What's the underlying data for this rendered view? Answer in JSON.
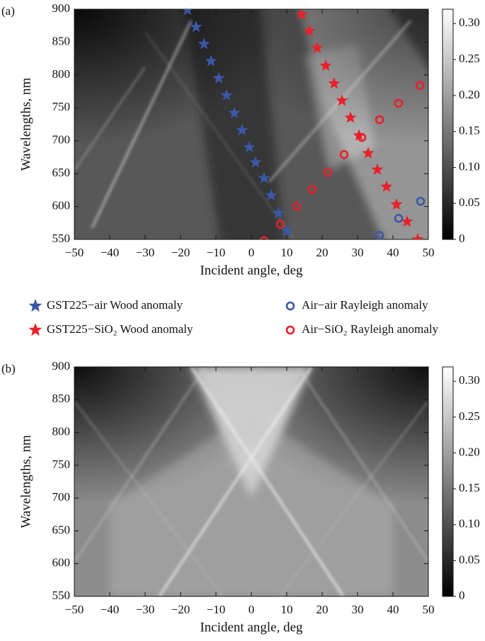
{
  "chart_data": [
    {
      "type": "scatter",
      "panel_label": "(a)",
      "xlabel": "Incident angle, deg",
      "ylabel": "Wavelengths, nm",
      "xlim": [
        -50,
        50
      ],
      "ylim": [
        550,
        900
      ],
      "xticks": [
        {
          "value": -50,
          "label": "−50"
        },
        {
          "value": -40,
          "label": "−40"
        },
        {
          "value": -30,
          "label": "−30"
        },
        {
          "value": -20,
          "label": "−20"
        },
        {
          "value": -10,
          "label": "−10"
        },
        0,
        10,
        20,
        30,
        40,
        50
      ],
      "yticks": [
        550,
        600,
        650,
        700,
        750,
        800,
        850,
        900
      ],
      "colorbar": {
        "lim": [
          0,
          0.32
        ],
        "ticks": [
          0,
          0.05,
          {
            "value": 0.1,
            "label": "0.10"
          },
          0.15,
          {
            "value": 0.2,
            "label": "0.20"
          },
          0.25,
          {
            "value": 0.3,
            "label": "0.30"
          }
        ]
      },
      "series": [
        {
          "name": "GST225−air Wood anomaly",
          "color": "#3b57a6",
          "marker": "star",
          "x": [
            -18,
            -15.6,
            -13.4,
            -11.4,
            -9.2,
            -7,
            -4.8,
            -2.6,
            -0.6,
            1.2,
            3.6,
            5.6,
            7.6,
            10
          ],
          "values": [
            899,
            873,
            847,
            821,
            795,
            769,
            742,
            716,
            690,
            667,
            643,
            617,
            590,
            563
          ]
        },
        {
          "name": "Air−air Rayleigh anomaly",
          "color": "#3b57a6",
          "marker": "circle",
          "x": [
            36.2,
            41.6,
            47.8
          ],
          "values": [
            556,
            582,
            608
          ]
        },
        {
          "name": "GST225−SiO₂ Wood anomaly",
          "color": "#e8202a",
          "marker": "star",
          "x": [
            14.2,
            16.4,
            18.6,
            21,
            23.4,
            25.6,
            28,
            30.4,
            33,
            35.6,
            38.2,
            41,
            44,
            47
          ],
          "values": [
            892,
            867,
            841,
            814,
            787,
            761,
            735,
            708,
            681,
            656,
            630,
            603,
            577,
            550
          ]
        },
        {
          "name": "Air−SiO₂ Rayleigh anomaly",
          "color": "#e8202a",
          "marker": "circle",
          "x": [
            3.6,
            8.2,
            12.8,
            17.2,
            21.6,
            26.2,
            31.2,
            36.2,
            41.6,
            47.6
          ],
          "values": [
            548,
            573,
            600,
            626,
            652,
            679,
            705,
            732,
            757,
            784
          ]
        }
      ]
    },
    {
      "type": "heatmap",
      "panel_label": "(b)",
      "xlabel": "Incident angle, deg",
      "ylabel": "Wavelengths, nm",
      "xlim": [
        -50,
        50
      ],
      "ylim": [
        550,
        900
      ],
      "xticks": [
        {
          "value": -50,
          "label": "−50"
        },
        {
          "value": -40,
          "label": "−40"
        },
        {
          "value": -30,
          "label": "−30"
        },
        {
          "value": -20,
          "label": "−20"
        },
        {
          "value": -10,
          "label": "−10"
        },
        0,
        10,
        20,
        30,
        40,
        50
      ],
      "yticks": [
        550,
        600,
        650,
        700,
        750,
        800,
        850,
        900
      ],
      "colorbar": {
        "lim": [
          0,
          0.32
        ],
        "ticks": [
          0,
          0.05,
          {
            "value": 0.1,
            "label": "0.10"
          },
          0.15,
          {
            "value": 0.2,
            "label": "0.20"
          },
          0.25,
          {
            "value": 0.3,
            "label": "0.30"
          }
        ]
      }
    }
  ]
}
